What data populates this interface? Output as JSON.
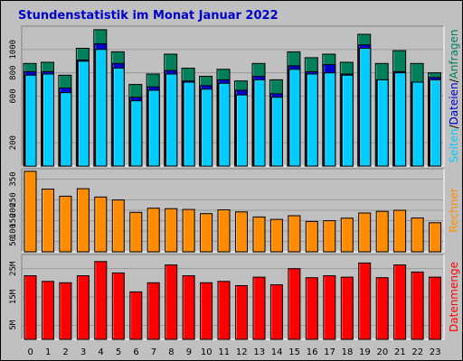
{
  "title": "Stundenstatistik im Monat Januar 2022",
  "colors": {
    "title": "#0000cc",
    "anfragen": "#00805a",
    "dateien": "#0000cc",
    "seiten": "#00ccff",
    "rechner": "#ff8c00",
    "datenmenge": "#ff0000",
    "background": "#c0c0c0"
  },
  "chart_data": [
    {
      "type": "bar",
      "categories": [
        "0",
        "1",
        "2",
        "3",
        "4",
        "5",
        "6",
        "7",
        "8",
        "9",
        "10",
        "11",
        "12",
        "13",
        "14",
        "15",
        "16",
        "17",
        "18",
        "19",
        "20",
        "21",
        "22",
        "23"
      ],
      "series": [
        {
          "name": "Anfragen",
          "values": [
            880,
            890,
            780,
            1010,
            1170,
            980,
            700,
            790,
            960,
            840,
            770,
            830,
            730,
            880,
            740,
            980,
            930,
            960,
            890,
            1130,
            880,
            990,
            880,
            800
          ]
        },
        {
          "name": "Dateien",
          "values": [
            810,
            810,
            670,
            910,
            1050,
            880,
            590,
            680,
            820,
            730,
            690,
            740,
            650,
            770,
            620,
            860,
            810,
            870,
            790,
            1040,
            740,
            810,
            720,
            760
          ]
        },
        {
          "name": "Seiten",
          "values": [
            780,
            790,
            630,
            900,
            1000,
            840,
            560,
            650,
            790,
            720,
            660,
            710,
            610,
            740,
            590,
            830,
            790,
            800,
            780,
            1010,
            740,
            800,
            720,
            740
          ]
        }
      ],
      "yticks": [
        "200",
        "600",
        "800",
        "1000"
      ],
      "ylim": [
        0,
        1200
      ],
      "side_label": {
        "parts": [
          "Seiten",
          "Dateien",
          "Anfragen"
        ],
        "separator": "/"
      }
    },
    {
      "type": "bar",
      "categories": [
        "0",
        "1",
        "2",
        "3",
        "4",
        "5",
        "6",
        "7",
        "8",
        "9",
        "10",
        "11",
        "12",
        "13",
        "14",
        "15",
        "16",
        "17",
        "18",
        "19",
        "20",
        "21",
        "22",
        "23"
      ],
      "series": [
        {
          "name": "Rechner",
          "values": [
            388,
            302,
            268,
            304,
            264,
            250,
            190,
            210,
            208,
            204,
            184,
            202,
            192,
            168,
            156,
            174,
            146,
            150,
            162,
            187,
            195,
            200,
            163,
            140
          ]
        }
      ],
      "yticks": [
        "50",
        "100",
        "150",
        "200",
        "250",
        "350"
      ],
      "ylim": [
        0,
        400
      ],
      "side_label": {
        "parts": [
          "Rechner"
        ],
        "separator": ""
      }
    },
    {
      "type": "bar",
      "categories": [
        "0",
        "1",
        "2",
        "3",
        "4",
        "5",
        "6",
        "7",
        "8",
        "9",
        "10",
        "11",
        "12",
        "13",
        "14",
        "15",
        "16",
        "17",
        "18",
        "19",
        "20",
        "21",
        "22",
        "23"
      ],
      "series": [
        {
          "name": "Datenmenge",
          "values": [
            22.5,
            20.5,
            20.0,
            22.5,
            27.5,
            23.5,
            16.8,
            20.0,
            26.3,
            22.5,
            20.0,
            20.5,
            19.0,
            22.0,
            19.3,
            25.0,
            21.8,
            22.5,
            22.0,
            27.0,
            21.8,
            26.3,
            23.8,
            22.0
          ]
        }
      ],
      "yticks": [
        "5M",
        "15M",
        "25M"
      ],
      "ylim": [
        0,
        30
      ],
      "side_label": {
        "parts": [
          "Datenmenge"
        ],
        "separator": ""
      }
    }
  ]
}
